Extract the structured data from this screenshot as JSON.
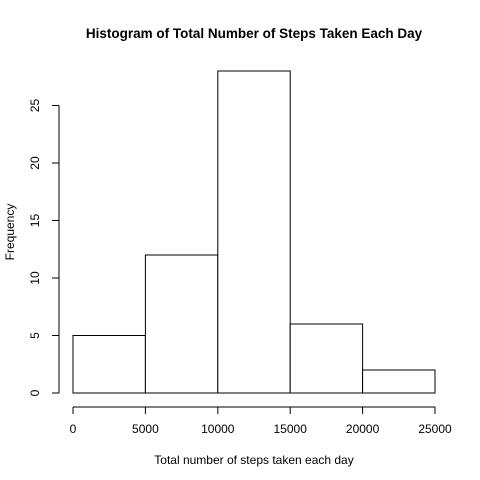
{
  "chart_data": {
    "type": "bar",
    "title": "Histogram of Total Number of Steps Taken Each Day",
    "xlabel": "Total number of steps taken each day",
    "ylabel": "Frequency",
    "bins": [
      {
        "from": 0,
        "to": 5000,
        "count": 5
      },
      {
        "from": 5000,
        "to": 10000,
        "count": 12
      },
      {
        "from": 10000,
        "to": 15000,
        "count": 28
      },
      {
        "from": 15000,
        "to": 20000,
        "count": 6
      },
      {
        "from": 20000,
        "to": 25000,
        "count": 2
      }
    ],
    "xlim": [
      0,
      25000
    ],
    "ylim": [
      0,
      28
    ],
    "x_ticks": [
      0,
      5000,
      10000,
      15000,
      20000,
      25000
    ],
    "x_tick_labels": [
      "0",
      "5000",
      "10000",
      "15000",
      "20000",
      "25000"
    ],
    "y_ticks": [
      0,
      5,
      10,
      15,
      20,
      25
    ],
    "y_tick_labels": [
      "0",
      "5",
      "10",
      "15",
      "20",
      "25"
    ],
    "grid": false,
    "legend": "none",
    "colors": {
      "bar_fill": "#ffffff",
      "bar_stroke": "#000000",
      "text": "#000000"
    }
  }
}
